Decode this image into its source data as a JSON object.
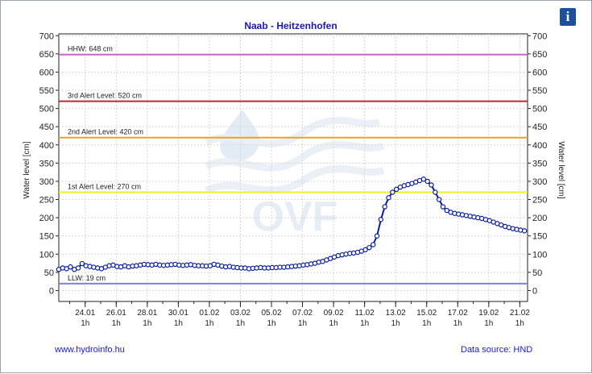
{
  "info_icon": {
    "glyph": "i",
    "icon": "info-icon",
    "color": "#1d4f9c"
  },
  "footer": {
    "website": "www.hydroinfo.hu",
    "source": "Data source: HND"
  },
  "watermark": {
    "text": "OVF"
  },
  "chart_data": {
    "type": "line",
    "title": "Naab - Heitzenhofen",
    "ylabel": "Water level [cm]",
    "ylabel_right": "Water level [cm]",
    "ylim": [
      -30,
      705
    ],
    "yticks": [
      0,
      50,
      100,
      150,
      200,
      250,
      300,
      350,
      400,
      450,
      500,
      550,
      600,
      650,
      700
    ],
    "xlim": [
      0,
      30.2
    ],
    "xticks": [
      {
        "x": 1.7,
        "date": "24.01",
        "hour": "1h"
      },
      {
        "x": 3.7,
        "date": "26.01",
        "hour": "1h"
      },
      {
        "x": 5.7,
        "date": "28.01",
        "hour": "1h"
      },
      {
        "x": 7.7,
        "date": "30.01",
        "hour": "1h"
      },
      {
        "x": 9.7,
        "date": "01.02",
        "hour": "1h"
      },
      {
        "x": 11.7,
        "date": "03.02",
        "hour": "1h"
      },
      {
        "x": 13.7,
        "date": "05.02",
        "hour": "1h"
      },
      {
        "x": 15.7,
        "date": "07.02",
        "hour": "1h"
      },
      {
        "x": 17.7,
        "date": "09.02",
        "hour": "1h"
      },
      {
        "x": 19.7,
        "date": "11.02",
        "hour": "1h"
      },
      {
        "x": 21.7,
        "date": "13.02",
        "hour": "1h"
      },
      {
        "x": 23.7,
        "date": "15.02",
        "hour": "1h"
      },
      {
        "x": 25.7,
        "date": "17.02",
        "hour": "1h"
      },
      {
        "x": 27.7,
        "date": "19.02",
        "hour": "1h"
      },
      {
        "x": 29.7,
        "date": "21.02",
        "hour": "1h"
      }
    ],
    "grid": true,
    "levels": [
      {
        "label": "HHW: 648 cm",
        "value": 648,
        "color": "#cc66cc"
      },
      {
        "label": "3rd Alert Level: 520 cm",
        "value": 520,
        "color": "#b03030"
      },
      {
        "label": "2nd Alert Level: 420 cm",
        "value": 420,
        "color": "#f0a020"
      },
      {
        "label": "1st Alert Level: 270 cm",
        "value": 270,
        "color": "#f0f020"
      },
      {
        "label": "LLW: 19 cm",
        "value": 19,
        "color": "#8080e0"
      }
    ],
    "series": [
      {
        "color": "#0a1e96",
        "x": [
          0.0,
          0.25,
          0.5,
          0.75,
          1.0,
          1.25,
          1.5,
          1.75,
          2.0,
          2.25,
          2.5,
          2.75,
          3.0,
          3.25,
          3.5,
          3.75,
          4.0,
          4.25,
          4.5,
          4.75,
          5.0,
          5.25,
          5.5,
          5.75,
          6.0,
          6.25,
          6.5,
          6.75,
          7.0,
          7.25,
          7.5,
          7.75,
          8.0,
          8.25,
          8.5,
          8.75,
          9.0,
          9.25,
          9.5,
          9.75,
          10.0,
          10.25,
          10.5,
          10.75,
          11.0,
          11.25,
          11.5,
          11.75,
          12.0,
          12.25,
          12.5,
          12.75,
          13.0,
          13.25,
          13.5,
          13.75,
          14.0,
          14.25,
          14.5,
          14.75,
          15.0,
          15.25,
          15.5,
          15.75,
          16.0,
          16.25,
          16.5,
          16.75,
          17.0,
          17.25,
          17.5,
          17.75,
          18.0,
          18.25,
          18.5,
          18.75,
          19.0,
          19.25,
          19.5,
          19.75,
          20.0,
          20.25,
          20.5,
          20.75,
          21.0,
          21.25,
          21.5,
          21.75,
          22.0,
          22.25,
          22.5,
          22.75,
          23.0,
          23.25,
          23.5,
          23.75,
          24.0,
          24.25,
          24.5,
          24.75,
          25.0,
          25.25,
          25.5,
          25.75,
          26.0,
          26.25,
          26.5,
          26.75,
          27.0,
          27.25,
          27.5,
          27.75,
          28.0,
          28.25,
          28.5,
          28.75,
          29.0,
          29.25,
          29.5,
          29.75,
          30.0
        ],
        "values": [
          58,
          62,
          60,
          65,
          58,
          62,
          74,
          68,
          66,
          64,
          62,
          60,
          64,
          68,
          70,
          66,
          65,
          68,
          65,
          67,
          68,
          70,
          72,
          71,
          70,
          72,
          70,
          69,
          70,
          71,
          72,
          70,
          69,
          70,
          71,
          69,
          68,
          68,
          67,
          68,
          72,
          70,
          67,
          65,
          66,
          64,
          63,
          62,
          62,
          60,
          61,
          62,
          63,
          62,
          62,
          63,
          63,
          64,
          64,
          65,
          66,
          67,
          68,
          70,
          71,
          73,
          75,
          78,
          80,
          84,
          88,
          92,
          96,
          98,
          100,
          102,
          103,
          105,
          108,
          112,
          118,
          126,
          150,
          195,
          230,
          255,
          270,
          278,
          284,
          288,
          291,
          294,
          298,
          302,
          306,
          300,
          290,
          270,
          250,
          230,
          220,
          215,
          212,
          210,
          208,
          206,
          204,
          202,
          200,
          198,
          195,
          192,
          188,
          184,
          180,
          176,
          173,
          170,
          168,
          166,
          164
        ]
      }
    ]
  }
}
